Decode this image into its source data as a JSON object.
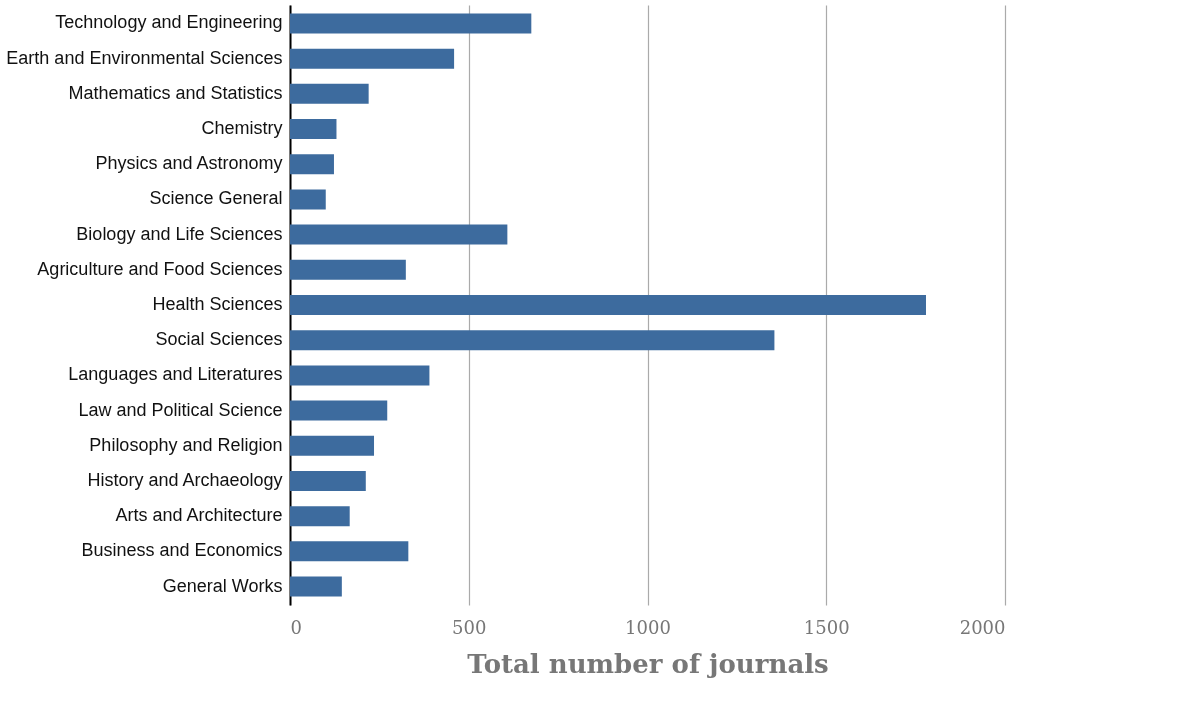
{
  "chart_data": {
    "type": "bar",
    "orientation": "horizontal",
    "xlabel": "Total number of journals",
    "categories": [
      "Technology and Engineering",
      "Earth and Environmental Sciences",
      "Mathematics and Statistics",
      "Chemistry",
      "Physics and Astronomy",
      "Science General",
      "Biology and Life Sciences",
      "Agriculture and Food Sciences",
      "Health Sciences",
      "Social Sciences",
      "Languages and Literatures",
      "Law and Political Science",
      "Philosophy and Religion",
      "History and Archaeology",
      "Arts and Architecture",
      "Business and Economics",
      "General Works"
    ],
    "values": [
      675,
      459,
      220,
      130,
      123,
      100,
      608,
      324,
      1779,
      1355,
      390,
      272,
      235,
      212,
      167,
      331,
      145
    ],
    "color": "#3d6b9e",
    "xlim": [
      0,
      2000
    ],
    "xticks": [
      0,
      500,
      1000,
      1500,
      2000
    ],
    "grid": "x"
  }
}
